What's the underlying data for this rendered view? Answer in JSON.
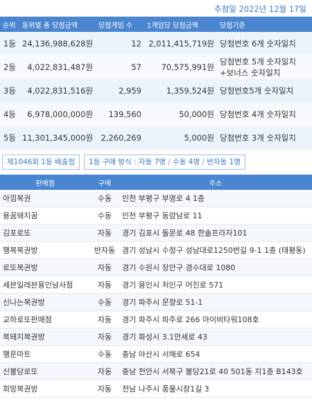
{
  "draw_date": "추첨일 2022년 12월 17일",
  "prize_table": {
    "headers": [
      "순위",
      "동위별 총 당첨금액",
      "당첨게임 수",
      "1게임당 당첨금액",
      "당첨기준"
    ],
    "rows": [
      [
        "1등",
        "24,136,988,628원",
        "12",
        "2,011,415,719원",
        [
          "당첨번호 6개 숫자일치"
        ]
      ],
      [
        "2등",
        "4,022,831,487원",
        "57",
        "70,575,991원",
        [
          "당첨번호 5개 숫자일치",
          "+보너스 숫자일치"
        ]
      ],
      [
        "3등",
        "4,022,831,516원",
        "2,959",
        "1,359,524원",
        [
          "당첨번호5개 숫자일치"
        ]
      ],
      [
        "4등",
        "6,978,000,000원",
        "139,560",
        "50,000원",
        [
          "당첨번호 4개 숫자일치"
        ]
      ],
      [
        "5등",
        "11,301,345,000원",
        "2,260,269",
        "5,000원",
        [
          "당첨번호 3개 숫자일치"
        ]
      ]
    ]
  },
  "buttons": {
    "winners": "제1046회 1등 배출점",
    "method_label": "1등 구매 방식 :",
    "methods": [
      "자동 7명",
      "수동 4명",
      "반자동 1명"
    ]
  },
  "store_table": {
    "headers": [
      "판매점",
      "구매",
      "주소"
    ],
    "rows": [
      [
        "아낌복권",
        "수동",
        "인천 부평구 부영로 4 1층"
      ],
      [
        "용꿈돼지꿈",
        "수동",
        "인천 부평구 동암남로 11"
      ],
      [
        "김포로또",
        "자동",
        "경기 김포시 돌문로 48 한솔프라자101"
      ],
      [
        "행복복권방",
        "반자동",
        "경기 성남시 수정구 성남대로1250번길 9-1 1층 (태평동)"
      ],
      [
        "로또복권방",
        "자동",
        "경기 수원시 장안구 경수대로 1080"
      ],
      [
        "세븐일레븐용인남사점",
        "자동",
        "경기 용인시 처인구 어진로 571"
      ],
      [
        "신나는복권방",
        "수동",
        "경기 파주시 문향로 51-1"
      ],
      [
        "교하로또판매점",
        "자동",
        "경기 파주시 파주로 266 아이비타워108호"
      ],
      [
        "복돼지복권방",
        "자동",
        "경기 화성시 3.1만세로 43"
      ],
      [
        "행운마트",
        "수동",
        "충남 아산시 서해로 654"
      ],
      [
        "신불당로또",
        "자동",
        "충남 천안시 서북구 불당21로 40 501동 지1층 B143호"
      ],
      [
        "희망복권방",
        "자동",
        "전남 나주시 풍물시장1길 3"
      ]
    ]
  }
}
